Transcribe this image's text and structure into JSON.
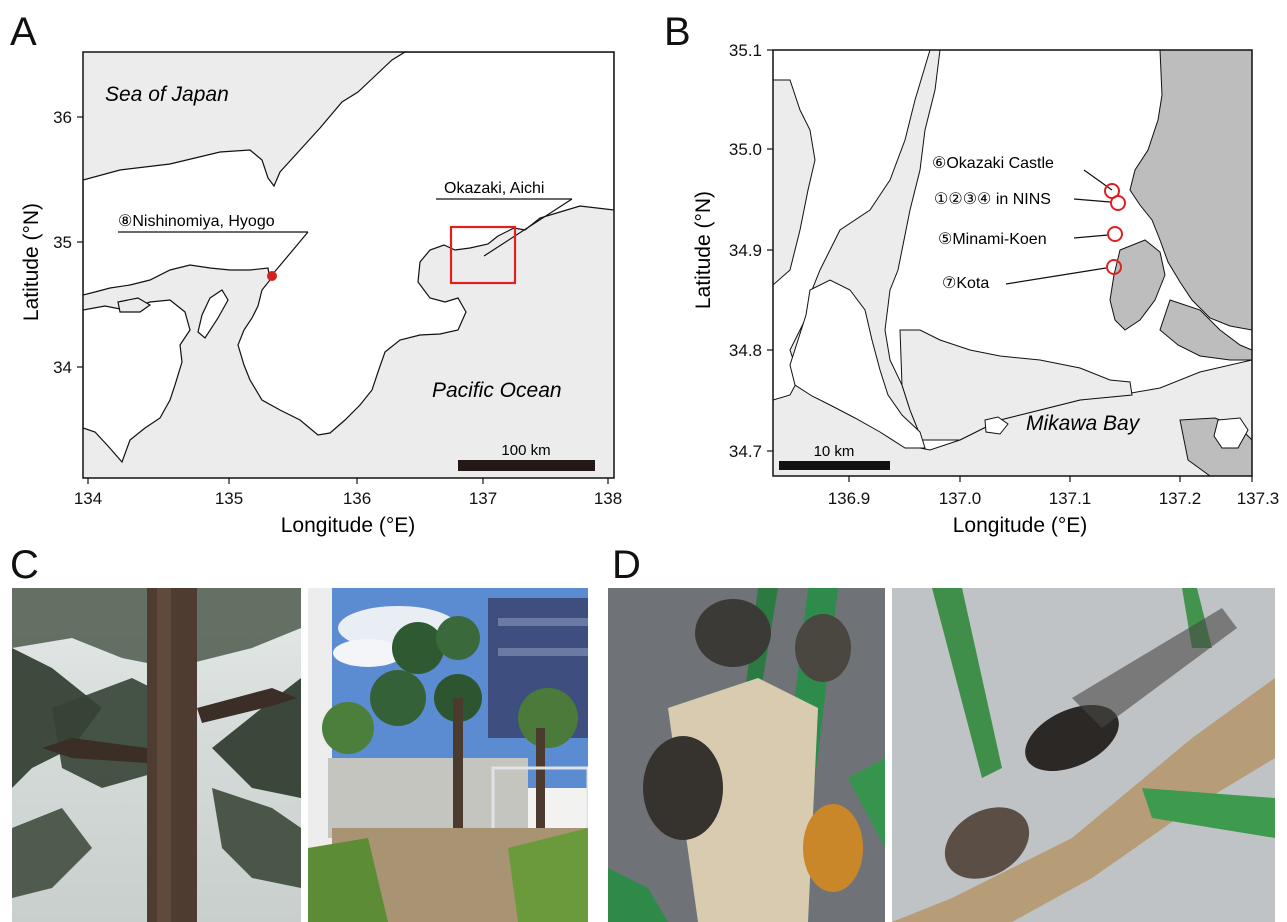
{
  "panels": {
    "a": {
      "letter": "A"
    },
    "b": {
      "letter": "B"
    },
    "c": {
      "letter": "C"
    },
    "d": {
      "letter": "D"
    }
  },
  "map_a": {
    "y_axis_label": "Latitude (°N)",
    "x_axis_label": "Longitude (°E)",
    "x_ticks": [
      "134",
      "135",
      "136",
      "137",
      "138"
    ],
    "y_ticks": [
      "34",
      "35",
      "36"
    ],
    "labels": {
      "sea_of_japan": "Sea of Japan",
      "pacific_ocean": "Pacific Ocean",
      "okazaki": "Okazaki, Aichi",
      "nishinomiya": "⑧Nishinomiya, Hyogo"
    },
    "scale_bar": "100 km",
    "site_color": "#d42020",
    "box_color": "#e02020"
  },
  "map_b": {
    "y_axis_label": "Latitude (°N)",
    "x_axis_label": "Longitude (°E)",
    "x_ticks": [
      "136.9",
      "137.0",
      "137.1",
      "137.2",
      "137.3"
    ],
    "y_ticks": [
      "34.7",
      "34.8",
      "34.9",
      "35.0",
      "35.1"
    ],
    "labels": {
      "site6": "⑥Okazaki Castle",
      "site1234": "①②③④ in NINS",
      "site5": "⑤Minami-Koen",
      "site7": "⑦Kota",
      "mikawa_bay": "Mikawa Bay"
    },
    "scale_bar": "10 km",
    "marker_color": "#e02020"
  },
  "colors": {
    "sea": "#ececec",
    "land": "#ffffff",
    "hill": "#bdbdbd",
    "outline": "#111111"
  }
}
